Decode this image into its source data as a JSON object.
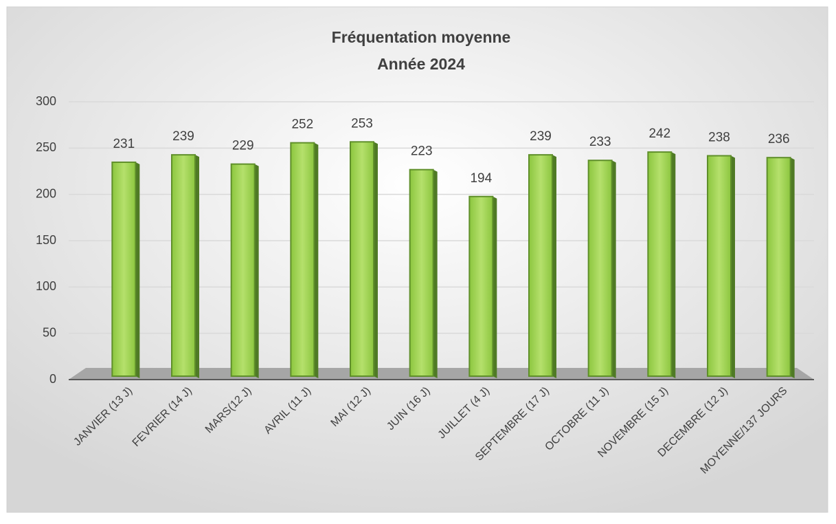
{
  "chart_data": {
    "type": "bar",
    "title": "Fréquentation moyenne",
    "subtitle": "Année 2024",
    "categories": [
      "JANVIER (13 J)",
      "FEVRIER (14 J)",
      "MARS(12 J)",
      "AVRIL (11 J)",
      "MAI (12 J)",
      "JUIN (16 J)",
      "JUILLET (4 J)",
      "SEPTEMBRE (17 J)",
      "OCTOBRE (11 J)",
      "NOVEMBRE (15 J)",
      "DECEMBRE (12 J)",
      "MOYENNE/137 JOURS"
    ],
    "values": [
      231,
      239,
      229,
      252,
      253,
      223,
      194,
      239,
      233,
      242,
      238,
      236
    ],
    "color": "#9ccf4f",
    "ylim": [
      0,
      300
    ],
    "yticks": [
      0,
      50,
      100,
      150,
      200,
      250,
      300
    ],
    "grid": true
  }
}
